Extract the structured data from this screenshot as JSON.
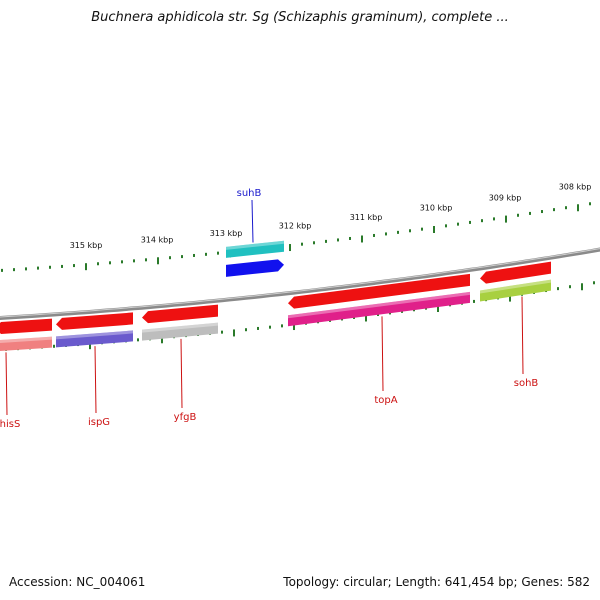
{
  "title": "Buchnera aphidicola str. Sg (Schizaphis graminum), complete ...",
  "accession": "Accession: NC_004061",
  "summary": "Topology: circular; Length: 641,454 bp; Genes: 582",
  "colors": {
    "backbone": "#8a8a8a",
    "tick": "#2a7a2a",
    "forward_label": "#1a1acc",
    "reverse_label": "#cc1111"
  },
  "scale_labels": [
    "315 kbp",
    "314 kbp",
    "313 kbp",
    "312 kbp",
    "311 kbp",
    "310 kbp",
    "309 kbp",
    "308 kbp"
  ],
  "genes": [
    {
      "name": "hisS",
      "strand": "reverse",
      "arrow_color": "#ee1111",
      "band_color": "#f08080"
    },
    {
      "name": "ispG",
      "strand": "reverse",
      "arrow_color": "#ee1111",
      "band_color": "#6a5acd"
    },
    {
      "name": "yfgB",
      "strand": "reverse",
      "arrow_color": "#ee1111",
      "band_color": "#bdbdbd"
    },
    {
      "name": "suhB",
      "strand": "forward",
      "arrow_color": "#1111ee",
      "band_color": "#20c0c0"
    },
    {
      "name": "topA",
      "strand": "reverse",
      "arrow_color": "#ee1111",
      "band_color": "#e0208a"
    },
    {
      "name": "sohB",
      "strand": "reverse",
      "arrow_color": "#ee1111",
      "band_color": "#a8d040"
    }
  ]
}
